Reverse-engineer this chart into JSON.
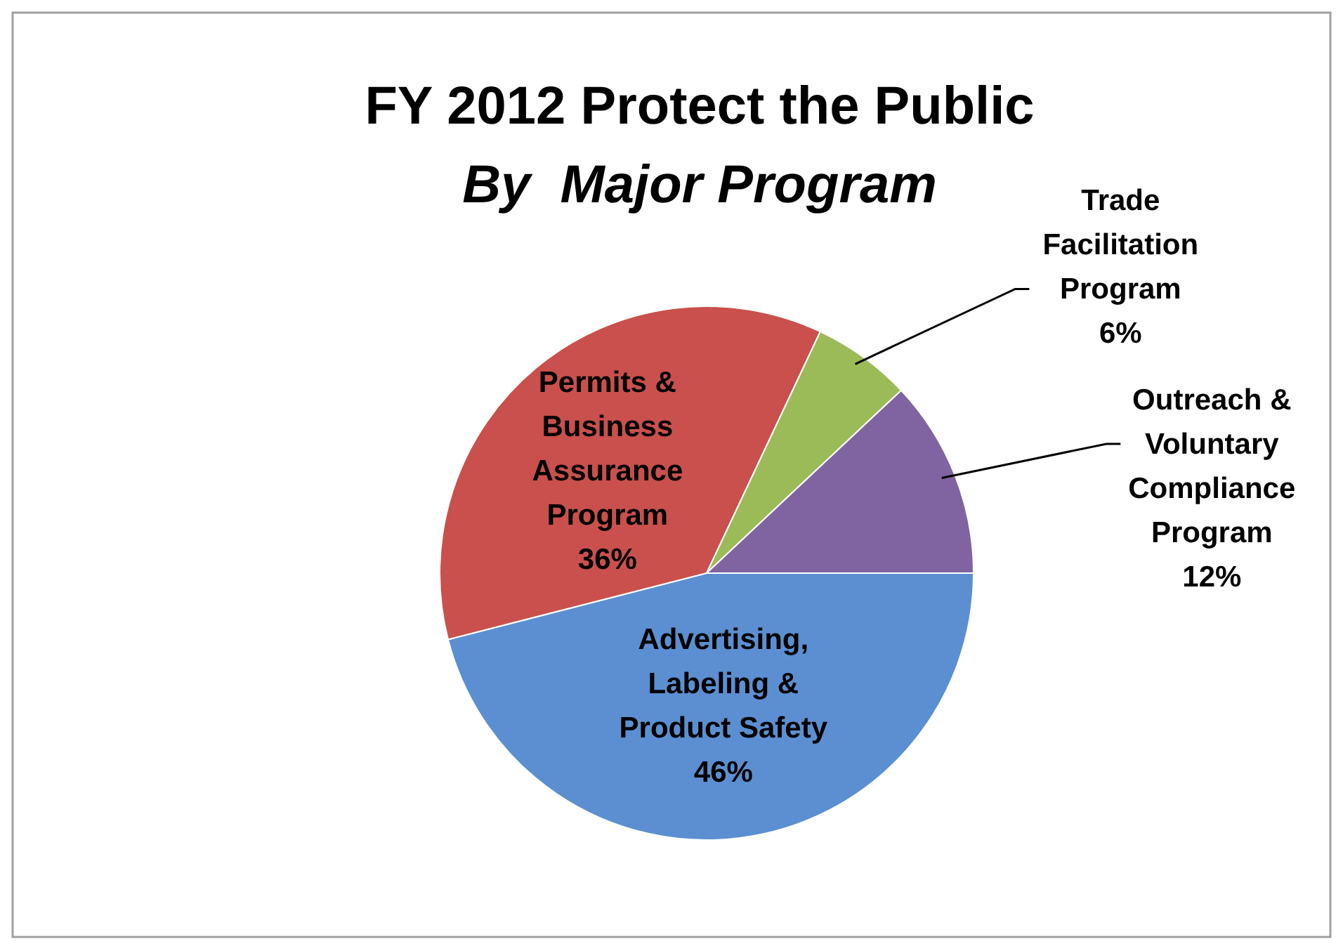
{
  "chart_data": {
    "type": "pie",
    "title": "FY 2012 Protect the Public",
    "subtitle": "By  Major Program",
    "categories": [
      "Advertising, Labeling & Product Safety",
      "Permits & Business Assurance Program",
      "Trade Facilitation Program",
      "Outreach & Voluntary Compliance Program"
    ],
    "values": [
      46,
      36,
      6,
      12
    ],
    "value_labels": [
      "46%",
      "36%",
      "6%",
      "12%"
    ],
    "colors": [
      "#5b8fd1",
      "#c9504c",
      "#9bbb59",
      "#8064a2"
    ]
  }
}
